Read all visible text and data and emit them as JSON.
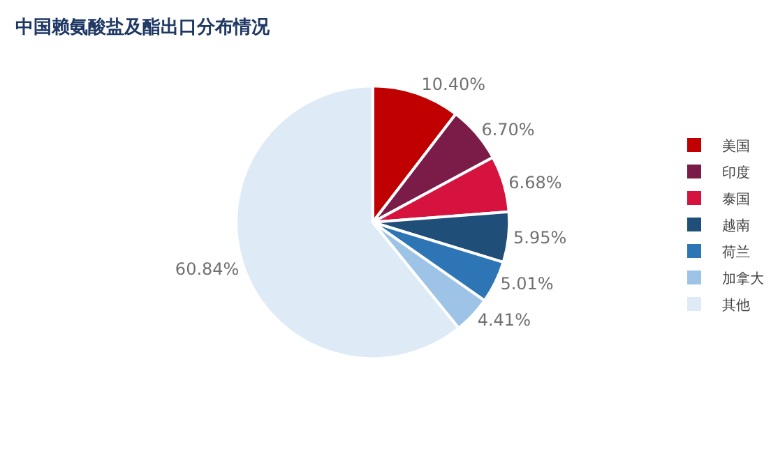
{
  "chart_data": {
    "type": "pie",
    "title": "中国赖氨酸盐及酯出口分布情况",
    "categories": [
      "美国",
      "印度",
      "泰国",
      "越南",
      "荷兰",
      "加拿大",
      "其他"
    ],
    "values": [
      10.4,
      6.7,
      6.68,
      5.95,
      5.01,
      4.41,
      60.84
    ],
    "value_labels": [
      "10.40%",
      "6.70%",
      "6.68%",
      "5.95%",
      "5.01%",
      "4.41%",
      "60.84%"
    ],
    "colors": [
      "#c00000",
      "#7b1c48",
      "#d6123e",
      "#1f4e79",
      "#2e75b6",
      "#9dc3e6",
      "#deebf7"
    ],
    "legend": "right"
  }
}
